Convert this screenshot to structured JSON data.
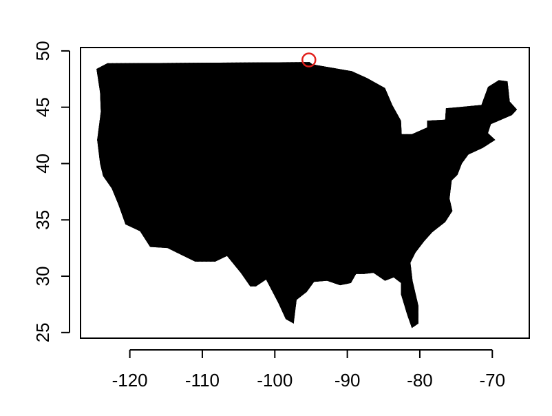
{
  "chart_data": {
    "type": "scatter",
    "title": "",
    "xlabel": "",
    "ylabel": "",
    "xlim": [
      -126.8,
      -64.9
    ],
    "ylim": [
      24.5,
      50.3
    ],
    "grid": false,
    "x_ticks": [
      {
        "value": -120,
        "label": "-120"
      },
      {
        "value": -110,
        "label": "-110"
      },
      {
        "value": -100,
        "label": "-100"
      },
      {
        "value": -90,
        "label": "-90"
      },
      {
        "value": -80,
        "label": "-80"
      },
      {
        "value": -70,
        "label": "-70"
      }
    ],
    "y_ticks": [
      {
        "value": 25,
        "label": "25"
      },
      {
        "value": 30,
        "label": "30"
      },
      {
        "value": 35,
        "label": "35"
      },
      {
        "value": 40,
        "label": "40"
      },
      {
        "value": 45,
        "label": "45"
      },
      {
        "value": 50,
        "label": "50"
      }
    ],
    "series": [
      {
        "marker": "filled-diamond-grid",
        "color": "#000000",
        "shape": "contiguous United States outline (lon, lat)",
        "outline": [
          [
            -124.6,
            48.4
          ],
          [
            -123.1,
            48.9
          ],
          [
            -95.2,
            49.0
          ],
          [
            -94.8,
            48.8
          ],
          [
            -89.4,
            48.2
          ],
          [
            -87.3,
            47.6
          ],
          [
            -84.8,
            46.7
          ],
          [
            -83.8,
            45.2
          ],
          [
            -82.6,
            43.8
          ],
          [
            -82.5,
            42.6
          ],
          [
            -81.1,
            42.6
          ],
          [
            -79.0,
            43.2
          ],
          [
            -79.0,
            43.8
          ],
          [
            -76.5,
            43.9
          ],
          [
            -76.4,
            44.9
          ],
          [
            -73.2,
            45.1
          ],
          [
            -71.5,
            45.2
          ],
          [
            -70.6,
            46.8
          ],
          [
            -69.1,
            47.4
          ],
          [
            -67.9,
            47.3
          ],
          [
            -67.6,
            45.5
          ],
          [
            -66.6,
            44.8
          ],
          [
            -67.3,
            44.3
          ],
          [
            -70.2,
            43.5
          ],
          [
            -70.6,
            42.7
          ],
          [
            -69.6,
            42.1
          ],
          [
            -71.3,
            41.4
          ],
          [
            -73.3,
            40.8
          ],
          [
            -74.2,
            40.0
          ],
          [
            -74.8,
            39.0
          ],
          [
            -75.6,
            38.5
          ],
          [
            -75.9,
            36.9
          ],
          [
            -75.5,
            35.8
          ],
          [
            -76.5,
            34.8
          ],
          [
            -78.3,
            33.9
          ],
          [
            -79.4,
            33.1
          ],
          [
            -80.6,
            32.1
          ],
          [
            -81.3,
            31.2
          ],
          [
            -81.0,
            29.6
          ],
          [
            -80.2,
            27.4
          ],
          [
            -80.2,
            25.8
          ],
          [
            -81.1,
            25.4
          ],
          [
            -81.7,
            26.5
          ],
          [
            -82.6,
            28.4
          ],
          [
            -82.6,
            29.4
          ],
          [
            -83.6,
            29.9
          ],
          [
            -84.8,
            29.6
          ],
          [
            -86.4,
            30.3
          ],
          [
            -87.7,
            30.2
          ],
          [
            -88.8,
            30.2
          ],
          [
            -89.5,
            29.4
          ],
          [
            -91.0,
            29.2
          ],
          [
            -92.8,
            29.6
          ],
          [
            -94.6,
            29.5
          ],
          [
            -95.6,
            28.6
          ],
          [
            -97.0,
            27.9
          ],
          [
            -97.4,
            25.8
          ],
          [
            -98.5,
            26.2
          ],
          [
            -99.5,
            27.6
          ],
          [
            -101.2,
            29.7
          ],
          [
            -102.6,
            29.1
          ],
          [
            -103.4,
            29.1
          ],
          [
            -104.7,
            30.3
          ],
          [
            -106.6,
            31.8
          ],
          [
            -108.2,
            31.3
          ],
          [
            -111.0,
            31.3
          ],
          [
            -114.8,
            32.5
          ],
          [
            -117.2,
            32.6
          ],
          [
            -118.6,
            34.0
          ],
          [
            -120.6,
            34.6
          ],
          [
            -121.6,
            36.4
          ],
          [
            -122.5,
            37.8
          ],
          [
            -123.7,
            38.9
          ],
          [
            -124.1,
            40.0
          ],
          [
            -124.5,
            42.1
          ],
          [
            -124.0,
            44.6
          ],
          [
            -124.1,
            46.3
          ],
          [
            -124.6,
            48.4
          ]
        ]
      }
    ],
    "highlight": {
      "x": -95.3,
      "y": 49.2,
      "marker": "open-circle",
      "color": "#e2201c"
    }
  }
}
